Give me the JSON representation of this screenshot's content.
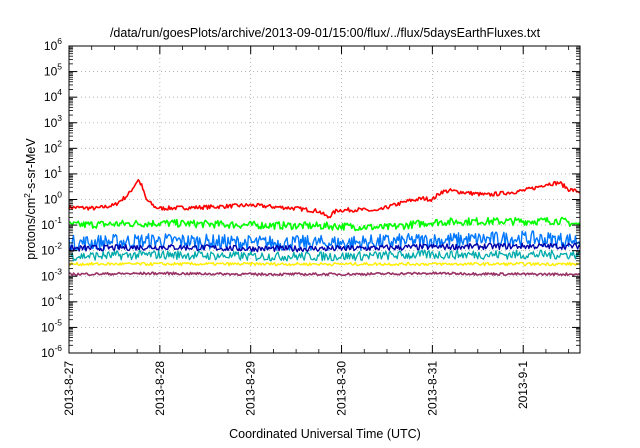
{
  "chart_data": {
    "type": "line",
    "title": "/data/run/goesPlots/archive/2013-09-01/15:00/flux/../flux/5daysEarthFluxes.txt",
    "xlabel": "Coordinated Universal Time (UTC)",
    "ylabel_parts": [
      "protons/cm",
      "2",
      "-s-sr-MeV"
    ],
    "y_scale": "log",
    "ylim": [
      1e-06,
      1000000.0
    ],
    "y_ticks": [
      {
        "base": "10",
        "exp": "6"
      },
      {
        "base": "10",
        "exp": "5"
      },
      {
        "base": "10",
        "exp": "4"
      },
      {
        "base": "10",
        "exp": "3"
      },
      {
        "base": "10",
        "exp": "2"
      },
      {
        "base": "10",
        "exp": "1"
      },
      {
        "base": "10",
        "exp": "0"
      },
      {
        "base": "10",
        "exp": "-1"
      },
      {
        "base": "10",
        "exp": "-2"
      },
      {
        "base": "10",
        "exp": "-3"
      },
      {
        "base": "10",
        "exp": "-4"
      },
      {
        "base": "10",
        "exp": "-5"
      },
      {
        "base": "10",
        "exp": "-6"
      }
    ],
    "x_range": [
      "2013-08-27 00:00",
      "2013-09-01 15:00"
    ],
    "x_ticks": [
      "2013-8-27",
      "2013-8-28",
      "2013-8-29",
      "2013-8-30",
      "2013-8-31",
      "2013-9-1"
    ],
    "grid": true,
    "legend": "none",
    "series": [
      {
        "color": "#ff0000",
        "width": 1.6,
        "noise": 0.08,
        "points": [
          [
            0,
            0.5
          ],
          [
            0.3,
            0.45
          ],
          [
            0.5,
            0.6
          ],
          [
            0.65,
            1.5
          ],
          [
            0.72,
            3.5
          ],
          [
            0.76,
            6.0
          ],
          [
            0.8,
            3.5
          ],
          [
            0.85,
            1.0
          ],
          [
            0.95,
            0.5
          ],
          [
            1.0,
            0.45
          ],
          [
            1.5,
            0.5
          ],
          [
            2.0,
            0.6
          ],
          [
            2.5,
            0.45
          ],
          [
            2.75,
            0.35
          ],
          [
            2.85,
            0.2
          ],
          [
            2.95,
            0.38
          ],
          [
            3.2,
            0.4
          ],
          [
            3.4,
            0.35
          ],
          [
            3.5,
            0.5
          ],
          [
            3.75,
            0.9
          ],
          [
            3.9,
            1.1
          ],
          [
            4.0,
            1.0
          ],
          [
            4.1,
            2.0
          ],
          [
            4.2,
            2.2
          ],
          [
            4.4,
            1.8
          ],
          [
            4.6,
            1.5
          ],
          [
            4.8,
            1.8
          ],
          [
            5.0,
            2.2
          ],
          [
            5.15,
            3.0
          ],
          [
            5.25,
            4.0
          ],
          [
            5.4,
            4.5
          ],
          [
            5.5,
            2.5
          ],
          [
            5.625,
            2.0
          ]
        ]
      },
      {
        "color": "#00ff00",
        "width": 1.6,
        "noise": 0.15,
        "points": [
          [
            0,
            0.1
          ],
          [
            1.0,
            0.12
          ],
          [
            2.0,
            0.1
          ],
          [
            3.0,
            0.09
          ],
          [
            3.5,
            0.08
          ],
          [
            4.0,
            0.13
          ],
          [
            4.5,
            0.14
          ],
          [
            5.0,
            0.14
          ],
          [
            5.4,
            0.15
          ],
          [
            5.625,
            0.1
          ]
        ]
      },
      {
        "color": "#0077ff",
        "width": 1.4,
        "noise": 0.3,
        "points": [
          [
            0,
            0.02
          ],
          [
            1.0,
            0.025
          ],
          [
            2.0,
            0.02
          ],
          [
            3.0,
            0.02
          ],
          [
            4.0,
            0.025
          ],
          [
            5.0,
            0.03
          ],
          [
            5.625,
            0.025
          ]
        ]
      },
      {
        "color": "#0000aa",
        "width": 1.4,
        "noise": 0.12,
        "points": [
          [
            0,
            0.012
          ],
          [
            1.0,
            0.014
          ],
          [
            2.0,
            0.012
          ],
          [
            3.0,
            0.012
          ],
          [
            4.0,
            0.014
          ],
          [
            5.0,
            0.015
          ],
          [
            5.625,
            0.015
          ]
        ]
      },
      {
        "color": "#00aaaa",
        "width": 1.3,
        "noise": 0.18,
        "points": [
          [
            0,
            0.006
          ],
          [
            1.0,
            0.007
          ],
          [
            2.0,
            0.006
          ],
          [
            3.0,
            0.006
          ],
          [
            4.0,
            0.007
          ],
          [
            5.0,
            0.007
          ],
          [
            5.625,
            0.007
          ]
        ]
      },
      {
        "color": "#ffee00",
        "width": 1.4,
        "noise": 0.06,
        "points": [
          [
            0,
            0.003
          ],
          [
            1.0,
            0.003
          ],
          [
            2.0,
            0.003
          ],
          [
            3.0,
            0.003
          ],
          [
            4.0,
            0.003
          ],
          [
            5.0,
            0.003
          ],
          [
            5.625,
            0.003
          ]
        ]
      },
      {
        "color": "#993366",
        "width": 1.6,
        "noise": 0.05,
        "points": [
          [
            0,
            0.0012
          ],
          [
            1.0,
            0.0013
          ],
          [
            2.0,
            0.0012
          ],
          [
            3.0,
            0.0012
          ],
          [
            4.0,
            0.0013
          ],
          [
            5.0,
            0.0012
          ],
          [
            5.625,
            0.0012
          ]
        ]
      }
    ]
  }
}
